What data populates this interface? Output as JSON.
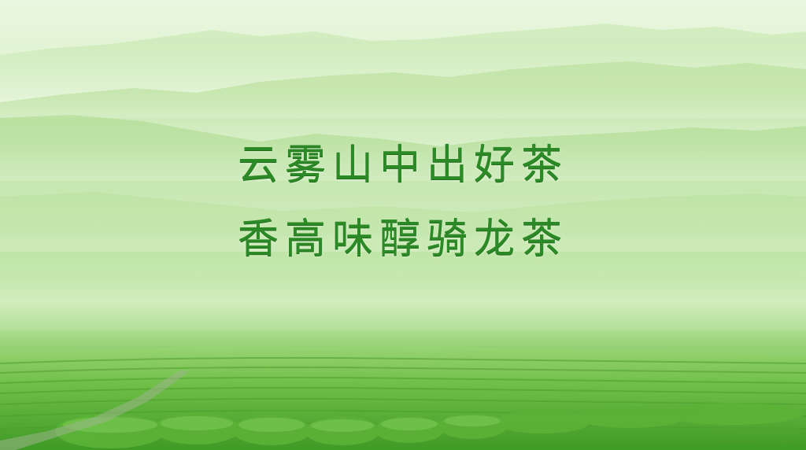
{
  "banner": {
    "headline_line1": "云雾山中出好茶",
    "headline_line2": "香高味醇骑龙茶"
  },
  "colors": {
    "text_green": "#2c8a26",
    "sky_mist": "#eaf7e0",
    "field_green": "#5fb23c"
  }
}
